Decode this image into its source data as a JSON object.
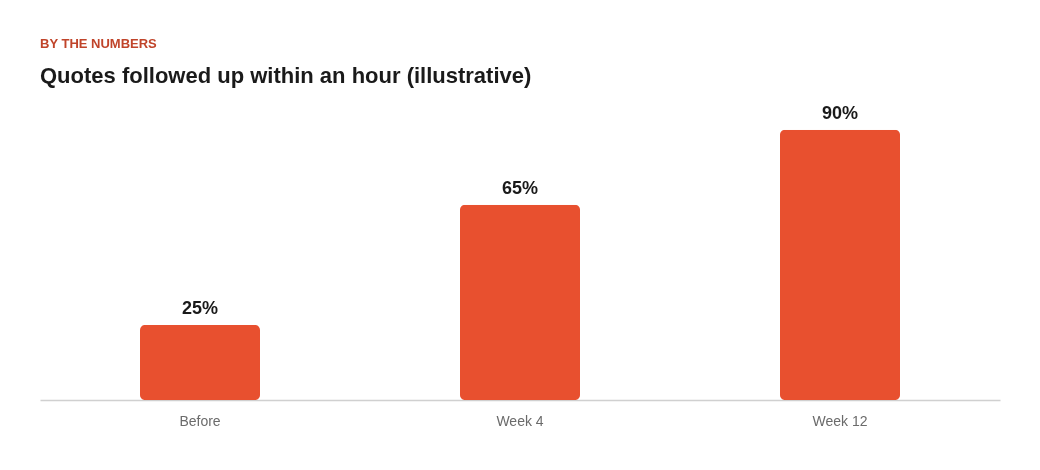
{
  "chart_data": {
    "type": "bar",
    "subtitle": "BY THE NUMBERS",
    "title": "Quotes followed up within an hour (illustrative)",
    "categories": [
      "Before",
      "Week 4",
      "Week 12"
    ],
    "values": [
      25,
      65,
      90
    ],
    "value_labels": [
      "25%",
      "65%",
      "90%"
    ],
    "color": "#e8502f"
  }
}
